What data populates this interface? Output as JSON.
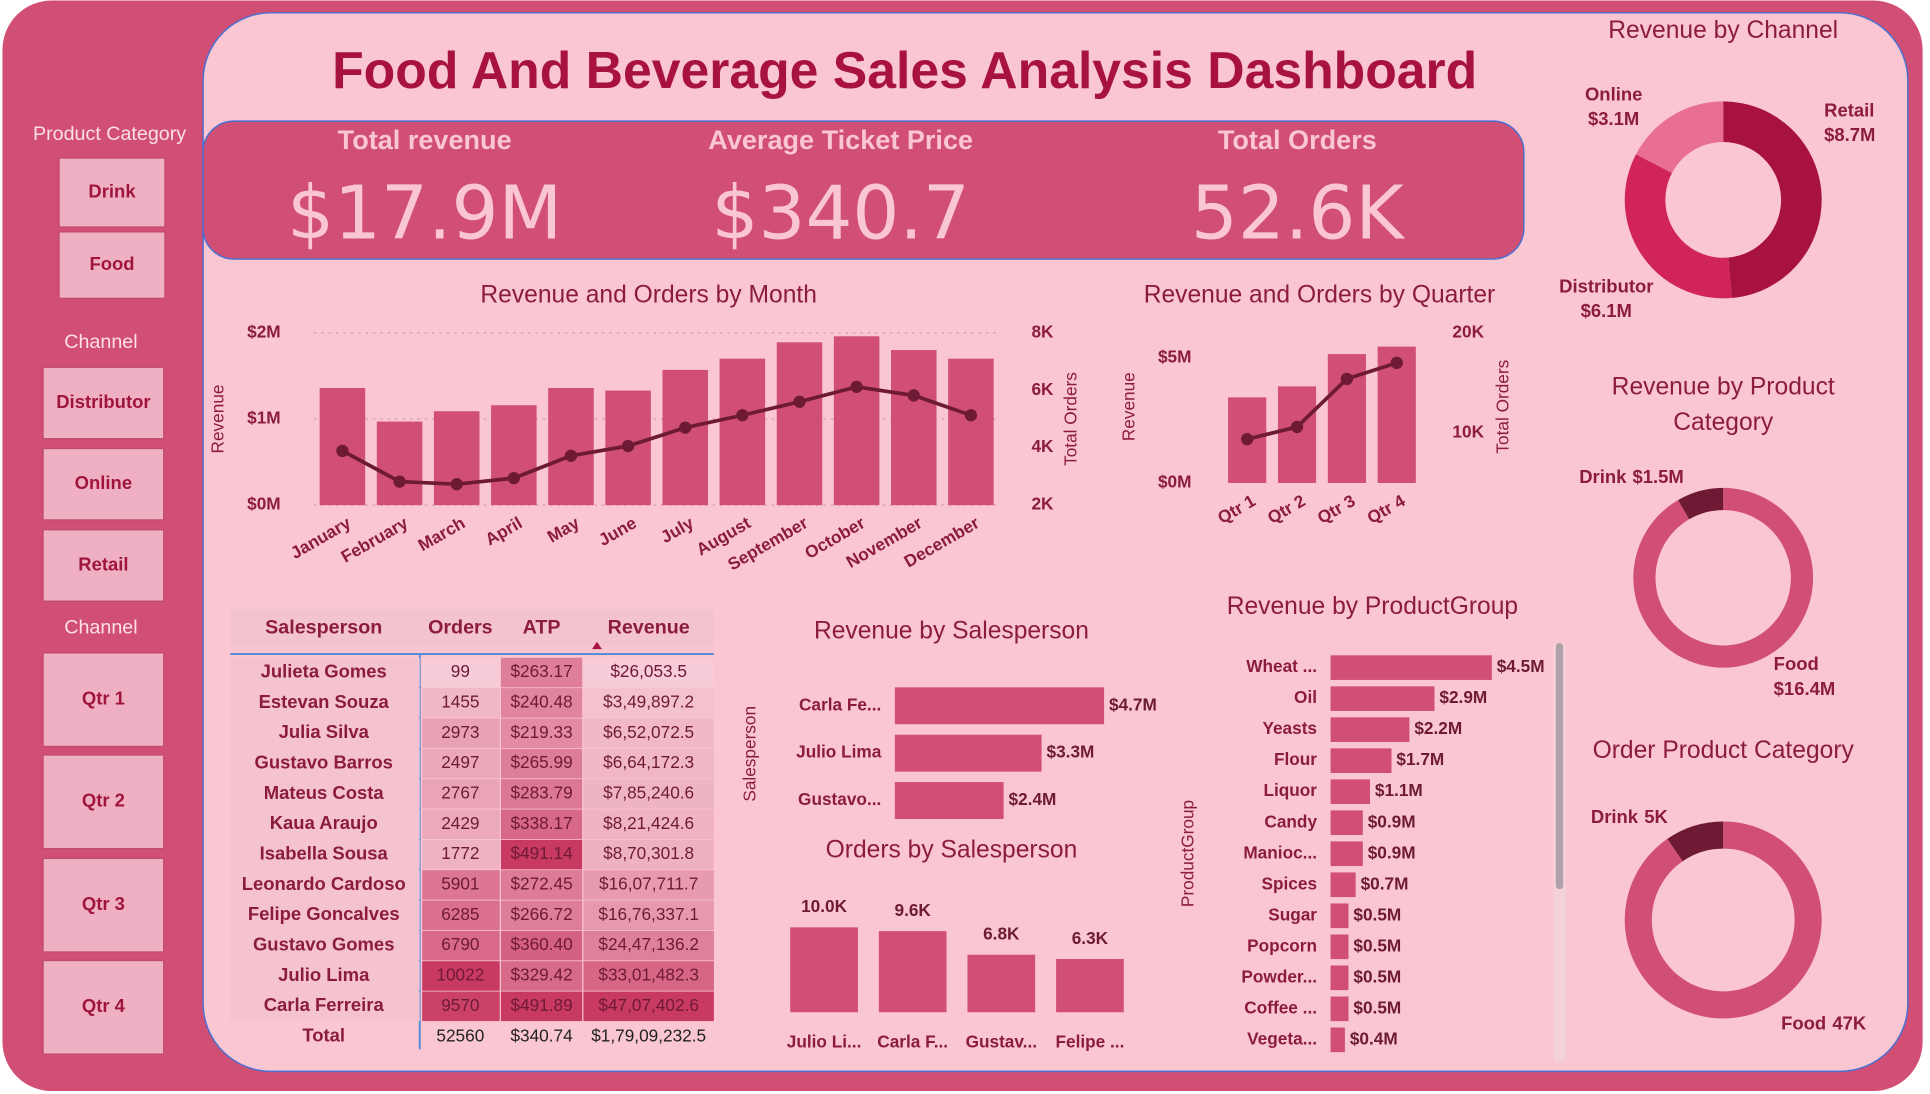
{
  "title": "Food And Beverage Sales Analysis Dashboard",
  "slicers": [
    {
      "title": "Product Category",
      "items": [
        "Drink",
        "Food"
      ]
    },
    {
      "title": "Channel",
      "items": [
        "Distributor",
        "Online",
        "Retail"
      ]
    },
    {
      "title": "Channel",
      "items": [
        "Qtr 1",
        "Qtr 2",
        "Qtr 3",
        "Qtr 4"
      ]
    }
  ],
  "kpis": [
    {
      "label": "Total revenue",
      "value": "$17.9M"
    },
    {
      "label": "Average Ticket Price",
      "value": "$340.7"
    },
    {
      "label": "Total Orders",
      "value": "52.6K"
    }
  ],
  "table": {
    "columns": [
      "Salesperson",
      "Orders",
      "ATP",
      "Revenue"
    ],
    "rows": [
      [
        "Julieta Gomes",
        99,
        "$263.17",
        "$26,053.5"
      ],
      [
        "Estevan Souza",
        1455,
        "$240.48",
        "$3,49,897.2"
      ],
      [
        "Julia Silva",
        2973,
        "$219.33",
        "$6,52,072.5"
      ],
      [
        "Gustavo Barros",
        2497,
        "$265.99",
        "$6,64,172.3"
      ],
      [
        "Mateus Costa",
        2767,
        "$283.79",
        "$7,85,240.6"
      ],
      [
        "Kaua Araujo",
        2429,
        "$338.17",
        "$8,21,424.6"
      ],
      [
        "Isabella Sousa",
        1772,
        "$491.14",
        "$8,70,301.8"
      ],
      [
        "Leonardo Cardoso",
        5901,
        "$272.45",
        "$16,07,711.7"
      ],
      [
        "Felipe Goncalves",
        6285,
        "$266.72",
        "$16,76,337.1"
      ],
      [
        "Gustavo Gomes",
        6790,
        "$360.40",
        "$24,47,136.2"
      ],
      [
        "Julio Lima",
        10022,
        "$329.42",
        "$33,01,482.3"
      ],
      [
        "Carla Ferreira",
        9570,
        "$491.89",
        "$47,07,402.6"
      ]
    ],
    "total": [
      "Total",
      52560,
      "$340.74",
      "$1,79,09,232.5"
    ]
  },
  "chart_data": [
    {
      "type": "combo",
      "title": "Revenue and Orders by Month",
      "categories": [
        "January",
        "February",
        "March",
        "April",
        "May",
        "June",
        "July",
        "August",
        "September",
        "October",
        "November",
        "December"
      ],
      "ylim": [
        0,
        2000000
      ],
      "yticks": [
        {
          "value": 0,
          "label": "$0M"
        },
        {
          "value": 1000000,
          "label": "$1M"
        },
        {
          "value": 2000000,
          "label": "$2M"
        }
      ],
      "y2lim": [
        2000,
        8000
      ],
      "y2ticks": [
        {
          "value": 2000,
          "label": "2K"
        },
        {
          "value": 4000,
          "label": "4K"
        },
        {
          "value": 6000,
          "label": "6K"
        },
        {
          "value": 8000,
          "label": "8K"
        }
      ],
      "grid": true,
      "series": [
        {
          "name": "Revenue",
          "type": "bar",
          "color": "#d14f74",
          "values": [
            1360000,
            970000,
            1090000,
            1160000,
            1360000,
            1330000,
            1570000,
            1700000,
            1890000,
            1960000,
            1800000,
            1700000
          ]
        },
        {
          "name": "Total Orders",
          "type": "line",
          "axis": "y2",
          "color": "#6e1a35",
          "values": [
            3890,
            2820,
            2730,
            2940,
            3720,
            4060,
            4700,
            5130,
            5600,
            6120,
            5820,
            5130
          ]
        }
      ]
    },
    {
      "type": "combo",
      "title": "Revenue and Orders by Quarter",
      "categories": [
        "Qtr 1",
        "Qtr 2",
        "Qtr 3",
        "Qtr 4"
      ],
      "ylim": [
        0,
        6000000
      ],
      "yticks": [
        {
          "value": 0,
          "label": "$0M"
        },
        {
          "value": 5000000,
          "label": "$5M"
        }
      ],
      "y2lim": [
        5000,
        20000
      ],
      "y2ticks": [
        {
          "value": 10000,
          "label": "10K"
        },
        {
          "value": 20000,
          "label": "20K"
        }
      ],
      "grid": false,
      "series": [
        {
          "name": "Revenue",
          "type": "bar",
          "color": "#d14f74",
          "values": [
            3420000,
            3860000,
            5150000,
            5450000
          ]
        },
        {
          "name": "Total Orders",
          "type": "line",
          "axis": "y2",
          "color": "#6e1a35",
          "values": [
            9380,
            10600,
            15400,
            17000
          ]
        }
      ]
    },
    {
      "type": "donut",
      "title": "Revenue by Channel",
      "categories": [
        "Retail",
        "Distributor",
        "Online"
      ],
      "values": [
        8700000,
        6100000,
        3100000
      ],
      "value_labels": [
        "$8.7M",
        "$6.1M",
        "$3.1M"
      ],
      "colors": [
        "#a8123f",
        "#d1245a",
        "#e86f92"
      ]
    },
    {
      "type": "donut",
      "title": "Revenue by Product Category",
      "categories": [
        "Food",
        "Drink"
      ],
      "values": [
        16400000,
        1500000
      ],
      "value_labels": [
        "$16.4M",
        "$1.5M"
      ],
      "colors": [
        "#d14f74",
        "#6e1a35"
      ]
    },
    {
      "type": "donut",
      "title": "Order Product Category",
      "categories": [
        "Food",
        "Drink"
      ],
      "values": [
        47000,
        5000
      ],
      "value_labels": [
        "47K",
        "5K"
      ],
      "colors": [
        "#d14f74",
        "#6e1a35"
      ]
    },
    {
      "type": "hbar",
      "title": "Revenue by Salesperson",
      "ylabel": "Salesperson",
      "categories": [
        "Carla Fe...",
        "Julio Lima",
        "Gustavo..."
      ],
      "values": [
        4707402.6,
        3301482.3,
        2447136.2
      ],
      "value_labels": [
        "$4.7M",
        "$3.3M",
        "$2.4M"
      ],
      "color": "#d14f74"
    },
    {
      "type": "bar",
      "title": "Orders by Salesperson",
      "categories": [
        "Julio Li...",
        "Carla F...",
        "Gustav...",
        "Felipe ..."
      ],
      "values": [
        10022,
        9570,
        6790,
        6285
      ],
      "value_labels": [
        "10.0K",
        "9.6K",
        "6.8K",
        "6.3K"
      ],
      "color": "#d14f74"
    },
    {
      "type": "hbar",
      "title": "Revenue by ProductGroup",
      "ylabel": "ProductGroup",
      "categories": [
        "Wheat ...",
        "Oil",
        "Yeasts",
        "Flour",
        "Liquor",
        "Candy",
        "Manioc...",
        "Spices",
        "Sugar",
        "Popcorn",
        "Powder...",
        "Coffee ...",
        "Vegeta..."
      ],
      "values": [
        4500000,
        2900000,
        2200000,
        1700000,
        1100000,
        900000,
        900000,
        700000,
        500000,
        500000,
        500000,
        500000,
        400000
      ],
      "value_labels": [
        "$4.5M",
        "$2.9M",
        "$2.2M",
        "$1.7M",
        "$1.1M",
        "$0.9M",
        "$0.9M",
        "$0.7M",
        "$0.5M",
        "$0.5M",
        "$0.5M",
        "$0.5M",
        "$0.4M"
      ],
      "color": "#d14f74"
    }
  ]
}
